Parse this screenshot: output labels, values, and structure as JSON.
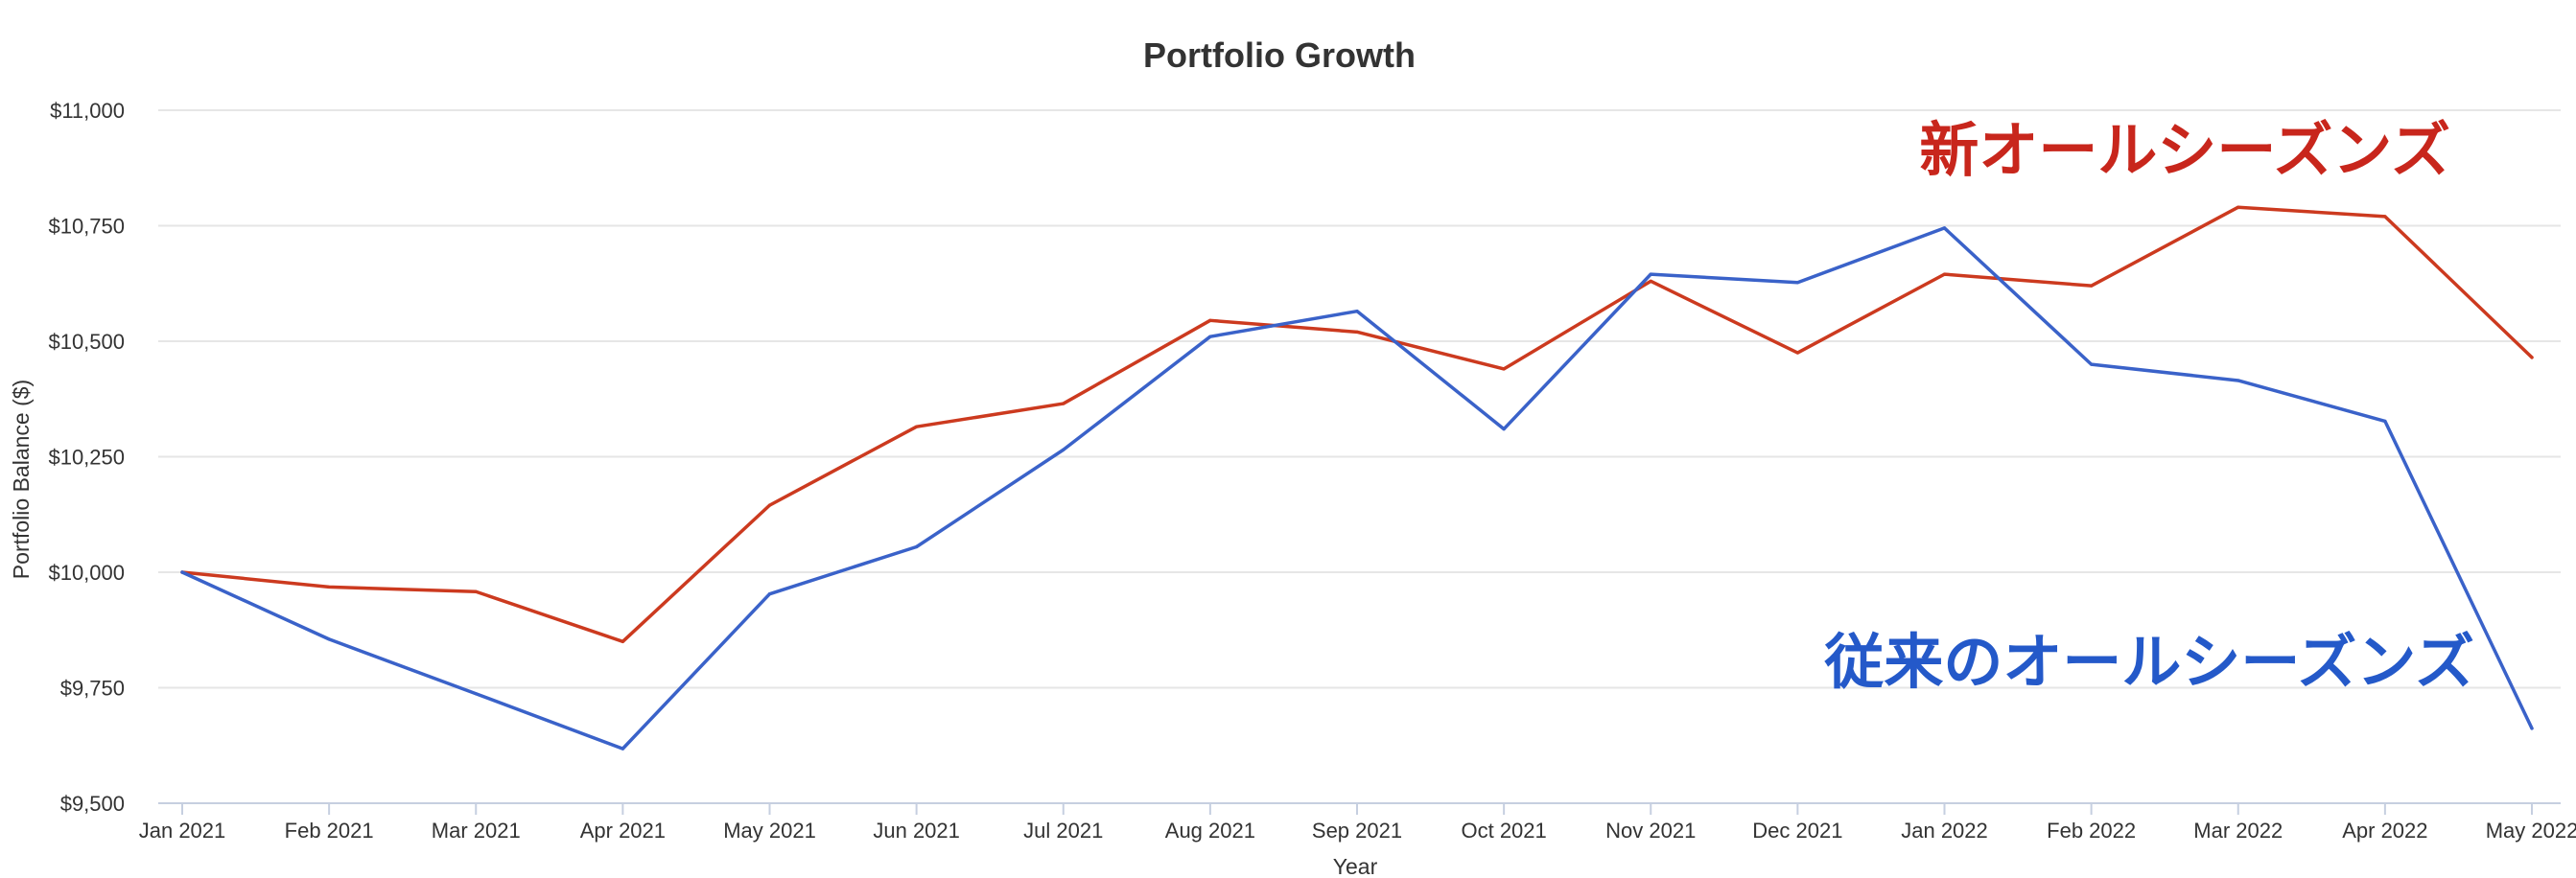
{
  "chart_data": {
    "type": "line",
    "title": "Portfolio Growth",
    "xlabel": "Year",
    "ylabel": "Portfolio Balance ($)",
    "categories": [
      "Jan 2021",
      "Feb 2021",
      "Mar 2021",
      "Apr 2021",
      "May 2021",
      "Jun 2021",
      "Jul 2021",
      "Aug 2021",
      "Sep 2021",
      "Oct 2021",
      "Nov 2021",
      "Dec 2021",
      "Jan 2022",
      "Feb 2022",
      "Mar 2022",
      "Apr 2022",
      "May 2022"
    ],
    "y_ticks": [
      "$9,500",
      "$9,750",
      "$10,000",
      "$10,250",
      "$10,500",
      "$10,750",
      "$11,000"
    ],
    "ylim": [
      9500,
      11000
    ],
    "grid": true,
    "series": [
      {
        "name": "新オールシーズンズ",
        "color": "#cc3a1f",
        "values": [
          10000,
          9968,
          9958,
          9850,
          10145,
          10315,
          10365,
          10545,
          10520,
          10440,
          10630,
          10475,
          10645,
          10620,
          10790,
          10770,
          10465
        ]
      },
      {
        "name": "従来のオールシーズンズ",
        "color": "#3a62c9",
        "values": [
          10000,
          9855,
          9737,
          9618,
          9953,
          10055,
          10265,
          10510,
          10565,
          10310,
          10645,
          10627,
          10745,
          10450,
          10415,
          10327,
          9662
        ]
      }
    ]
  },
  "annotations": {
    "new": {
      "text": "新オールシーズンズ",
      "color": "#c8261c"
    },
    "old": {
      "text": "従来のオールシーズンズ",
      "color": "#2459c9"
    }
  }
}
